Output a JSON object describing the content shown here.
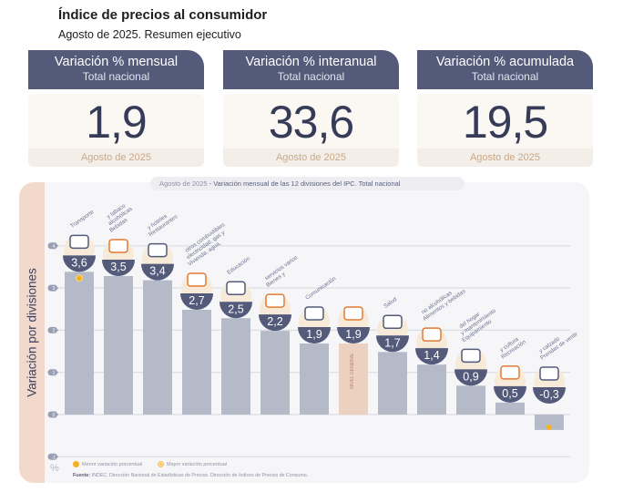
{
  "header": {
    "title": "Índice de precios al consumidor",
    "subtitle": "Agosto de 2025. Resumen ejecutivo"
  },
  "cards": [
    {
      "title": "Variación % mensual",
      "subtitle": "Total nacional",
      "value": "1,9",
      "footer": "Agosto de 2025"
    },
    {
      "title": "Variación % interanual",
      "subtitle": "Total nacional",
      "value": "33,6",
      "footer": "Agosto de 2025"
    },
    {
      "title": "Variación % acumulada",
      "subtitle": "Total nacional",
      "value": "19,5",
      "footer": "Agosto de 2025"
    }
  ],
  "chart_title": {
    "lead": "Agosto de 2025",
    "text": " - Variación mensual de las 12 divisiones del IPC. Total nacional"
  },
  "legend": {
    "min_label": "Menor variación porcentual",
    "max_label": "Mayor variación porcentual",
    "unit": "%"
  },
  "source": {
    "label": "Fuente:",
    "text": " INDEC, Dirección Nacional de Estadísticas de Precios. Dirección de Índices de Precios de Consumo."
  },
  "colors": {
    "bar": "#b4bac8",
    "bar_general": "#ecd0c0",
    "badge": "#535a7a",
    "accent": "#f4b223",
    "icon_orange": "#e07a35"
  },
  "chart_data": {
    "type": "bar",
    "title": "Agosto de 2025 - Variación mensual de las 12 divisiones del IPC. Total nacional",
    "ylabel": "Variación por divisiones",
    "yunit": "%",
    "ylim": [
      -1,
      4
    ],
    "yticks": [
      -1,
      0,
      1,
      2,
      3,
      4
    ],
    "grid": true,
    "categories": [
      "Transporte",
      "Bebidas alcohólicas y tabaco",
      "Restaurantes y hoteles",
      "Vivienda, agua, electricidad, gas y otros combustibles",
      "Educación",
      "Bienes y servicios varios",
      "Comunicación",
      "Nivel general",
      "Salud",
      "Alimentos y bebidas no alcohólicas",
      "Equipamiento y mantenimiento del hogar",
      "Recreación y cultura",
      "Prendas de vestir y calzado"
    ],
    "category_lines": [
      [
        "Transporte"
      ],
      [
        "Bebidas",
        "alcohólicas",
        "y tabaco"
      ],
      [
        "Restaurantes",
        "y hoteles"
      ],
      [
        "Vivienda, agua,",
        "electricidad, gas y",
        "otros combustibles"
      ],
      [
        "Educación"
      ],
      [
        "Bienes y",
        "servicios varios"
      ],
      [
        "Comunicación"
      ],
      [],
      [
        "Salud"
      ],
      [
        "Alimentos y bebidas",
        "no alcohólicas"
      ],
      [
        "Equipamiento",
        "y mantenimiento",
        "del hogar"
      ],
      [
        "Recreación",
        "y cultura"
      ],
      [
        "Prendas de vestir",
        "y calzado"
      ]
    ],
    "values": [
      3.6,
      3.5,
      3.4,
      2.7,
      2.5,
      2.2,
      1.9,
      1.9,
      1.7,
      1.4,
      0.9,
      0.5,
      -0.3
    ],
    "labels": [
      "3,6",
      "3,5",
      "3,4",
      "2,7",
      "2,5",
      "2,2",
      "1,9",
      "1,9",
      "1,7",
      "1,4",
      "0,9",
      "0,5",
      "-0,3"
    ],
    "highlight_index": 7,
    "highlight_label": "NIVEL GENERAL",
    "max_index": 0,
    "min_index": 12
  }
}
